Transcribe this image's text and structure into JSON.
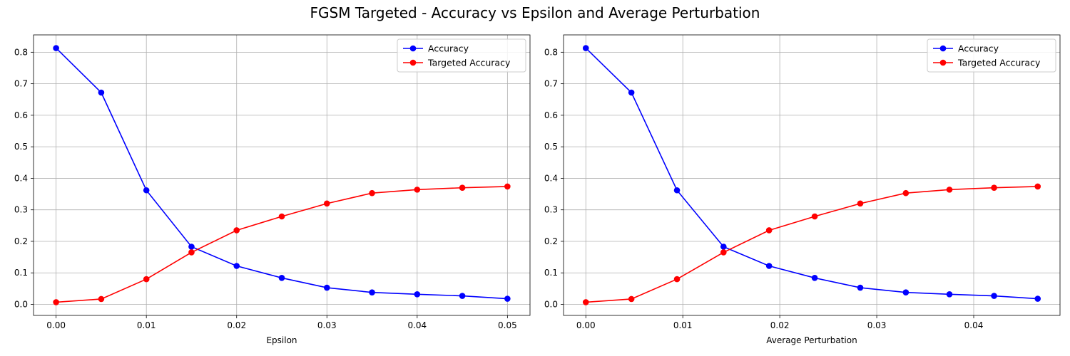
{
  "figure": {
    "title": "FGSM Targeted - Accuracy vs Epsilon and Average Perturbation"
  },
  "chart_data": [
    {
      "type": "line",
      "title": "",
      "xlabel": "Epsilon",
      "ylabel": "",
      "xlim": [
        -0.0025,
        0.0525
      ],
      "ylim": [
        -0.035,
        0.855
      ],
      "xticks": [
        0.0,
        0.01,
        0.02,
        0.03,
        0.04,
        0.05
      ],
      "xtick_labels": [
        "0.00",
        "0.01",
        "0.02",
        "0.03",
        "0.04",
        "0.05"
      ],
      "yticks": [
        0.0,
        0.1,
        0.2,
        0.3,
        0.4,
        0.5,
        0.6,
        0.7,
        0.8
      ],
      "ytick_labels": [
        "0.0",
        "0.1",
        "0.2",
        "0.3",
        "0.4",
        "0.5",
        "0.6",
        "0.7",
        "0.8"
      ],
      "grid": true,
      "legend": "upper-right",
      "x": [
        0.0,
        0.005,
        0.01,
        0.015,
        0.02,
        0.025,
        0.03,
        0.035,
        0.04,
        0.045,
        0.05
      ],
      "series": [
        {
          "name": "Accuracy",
          "color": "#0000ff",
          "values": [
            0.813,
            0.672,
            0.362,
            0.183,
            0.122,
            0.084,
            0.053,
            0.038,
            0.032,
            0.027,
            0.018
          ]
        },
        {
          "name": "Targeted Accuracy",
          "color": "#ff0000",
          "values": [
            0.007,
            0.017,
            0.08,
            0.165,
            0.235,
            0.279,
            0.32,
            0.353,
            0.364,
            0.37,
            0.374
          ]
        }
      ]
    },
    {
      "type": "line",
      "title": "",
      "xlabel": "Average Perturbation",
      "ylabel": "",
      "xlim": [
        -0.0023,
        0.0489
      ],
      "ylim": [
        -0.035,
        0.855
      ],
      "xticks": [
        0.0,
        0.01,
        0.02,
        0.03,
        0.04
      ],
      "xtick_labels": [
        "0.00",
        "0.01",
        "0.02",
        "0.03",
        "0.04"
      ],
      "yticks": [
        0.0,
        0.1,
        0.2,
        0.3,
        0.4,
        0.5,
        0.6,
        0.7,
        0.8
      ],
      "ytick_labels": [
        "0.0",
        "0.1",
        "0.2",
        "0.3",
        "0.4",
        "0.5",
        "0.6",
        "0.7",
        "0.8"
      ],
      "grid": true,
      "legend": "upper-right",
      "x": [
        0.0,
        0.0047,
        0.0094,
        0.0142,
        0.0189,
        0.0236,
        0.0283,
        0.033,
        0.0375,
        0.0421,
        0.0466
      ],
      "series": [
        {
          "name": "Accuracy",
          "color": "#0000ff",
          "values": [
            0.813,
            0.672,
            0.362,
            0.183,
            0.122,
            0.084,
            0.053,
            0.038,
            0.032,
            0.027,
            0.018
          ]
        },
        {
          "name": "Targeted Accuracy",
          "color": "#ff0000",
          "values": [
            0.007,
            0.017,
            0.08,
            0.165,
            0.235,
            0.279,
            0.32,
            0.353,
            0.364,
            0.37,
            0.374
          ]
        }
      ]
    }
  ]
}
